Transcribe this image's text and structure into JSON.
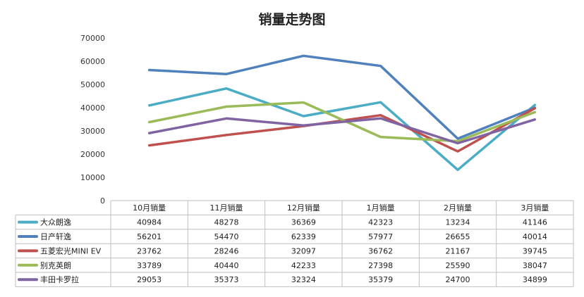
{
  "chart_data": {
    "type": "line",
    "title": "销量走势图",
    "categories": [
      "10月销量",
      "11月销量",
      "12月销量",
      "1月销量",
      "2月销量",
      "3月销量"
    ],
    "ylim": [
      0,
      70000
    ],
    "yticks": [
      0,
      10000,
      20000,
      30000,
      40000,
      50000,
      60000,
      70000
    ],
    "grid": false,
    "legend": "data-table",
    "series": [
      {
        "name": "大众朗逸",
        "color": "#4bacc6",
        "values": [
          40984,
          48278,
          36369,
          42323,
          13234,
          41146
        ]
      },
      {
        "name": "日产轩逸",
        "color": "#4f81bd",
        "values": [
          56201,
          54470,
          62339,
          57977,
          26655,
          40014
        ]
      },
      {
        "name": "五菱宏光MINI EV",
        "color": "#c0504d",
        "values": [
          23762,
          28246,
          32097,
          36762,
          21167,
          39745
        ]
      },
      {
        "name": "别克英朗",
        "color": "#9bbb59",
        "values": [
          33789,
          40440,
          42233,
          27398,
          25590,
          38047
        ]
      },
      {
        "name": "丰田卡罗拉",
        "color": "#8064a2",
        "values": [
          29053,
          35373,
          32324,
          35379,
          24700,
          34899
        ]
      }
    ]
  }
}
